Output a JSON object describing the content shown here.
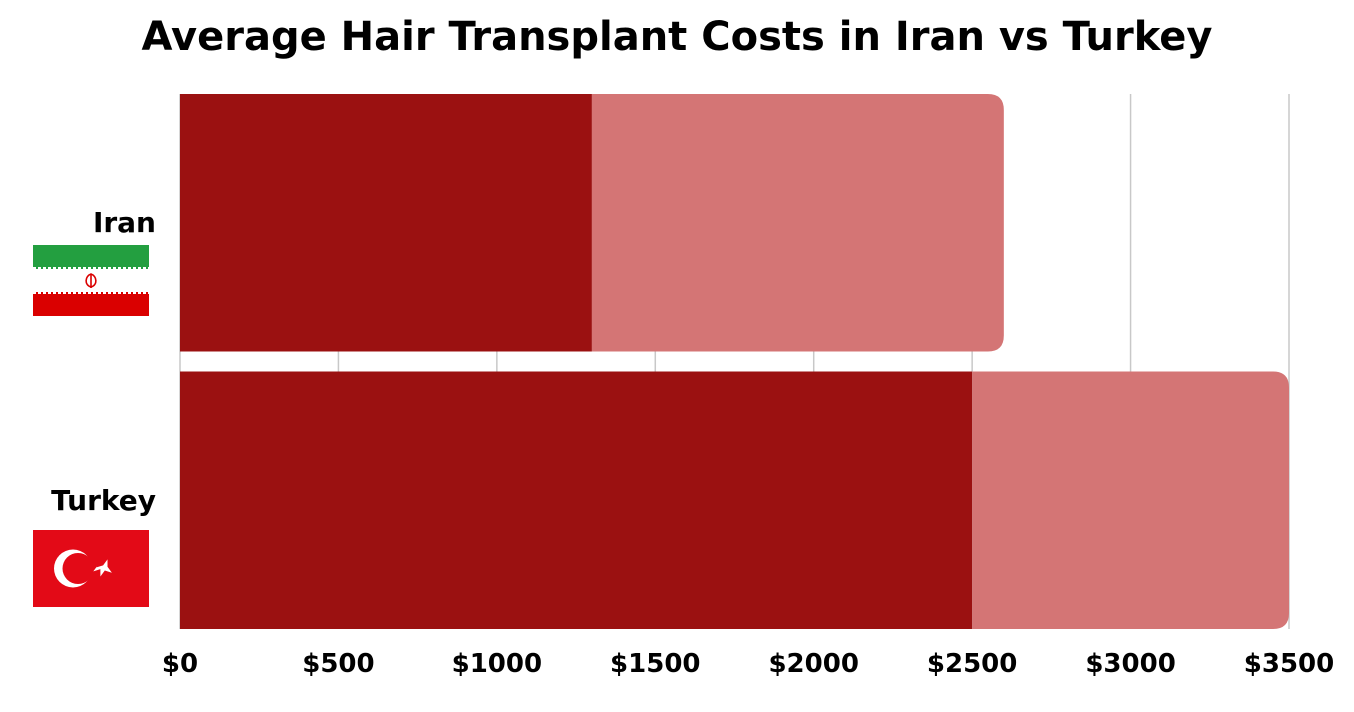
{
  "chart_data": {
    "type": "bar",
    "orientation": "horizontal",
    "stacked": true,
    "title": "Average Hair Transplant Costs in Iran vs Turkey",
    "categories": [
      "Iran",
      "Turkey"
    ],
    "series": [
      {
        "values": [
          1300,
          2500
        ],
        "color": "#9b1111"
      },
      {
        "values": [
          1300,
          1000
        ],
        "color": "#d47575"
      }
    ],
    "xlim": [
      0,
      3500
    ],
    "x_ticks": [
      0,
      500,
      1000,
      1500,
      2000,
      2500,
      3000,
      3500
    ],
    "x_tick_labels": [
      "$0",
      "$500",
      "$1000",
      "$1500",
      "$2000",
      "$2500",
      "$3000",
      "$3500"
    ],
    "grid": "vertical",
    "legend": "none",
    "category_icons": [
      "iran-flag-icon",
      "turkey-flag-icon"
    ]
  }
}
